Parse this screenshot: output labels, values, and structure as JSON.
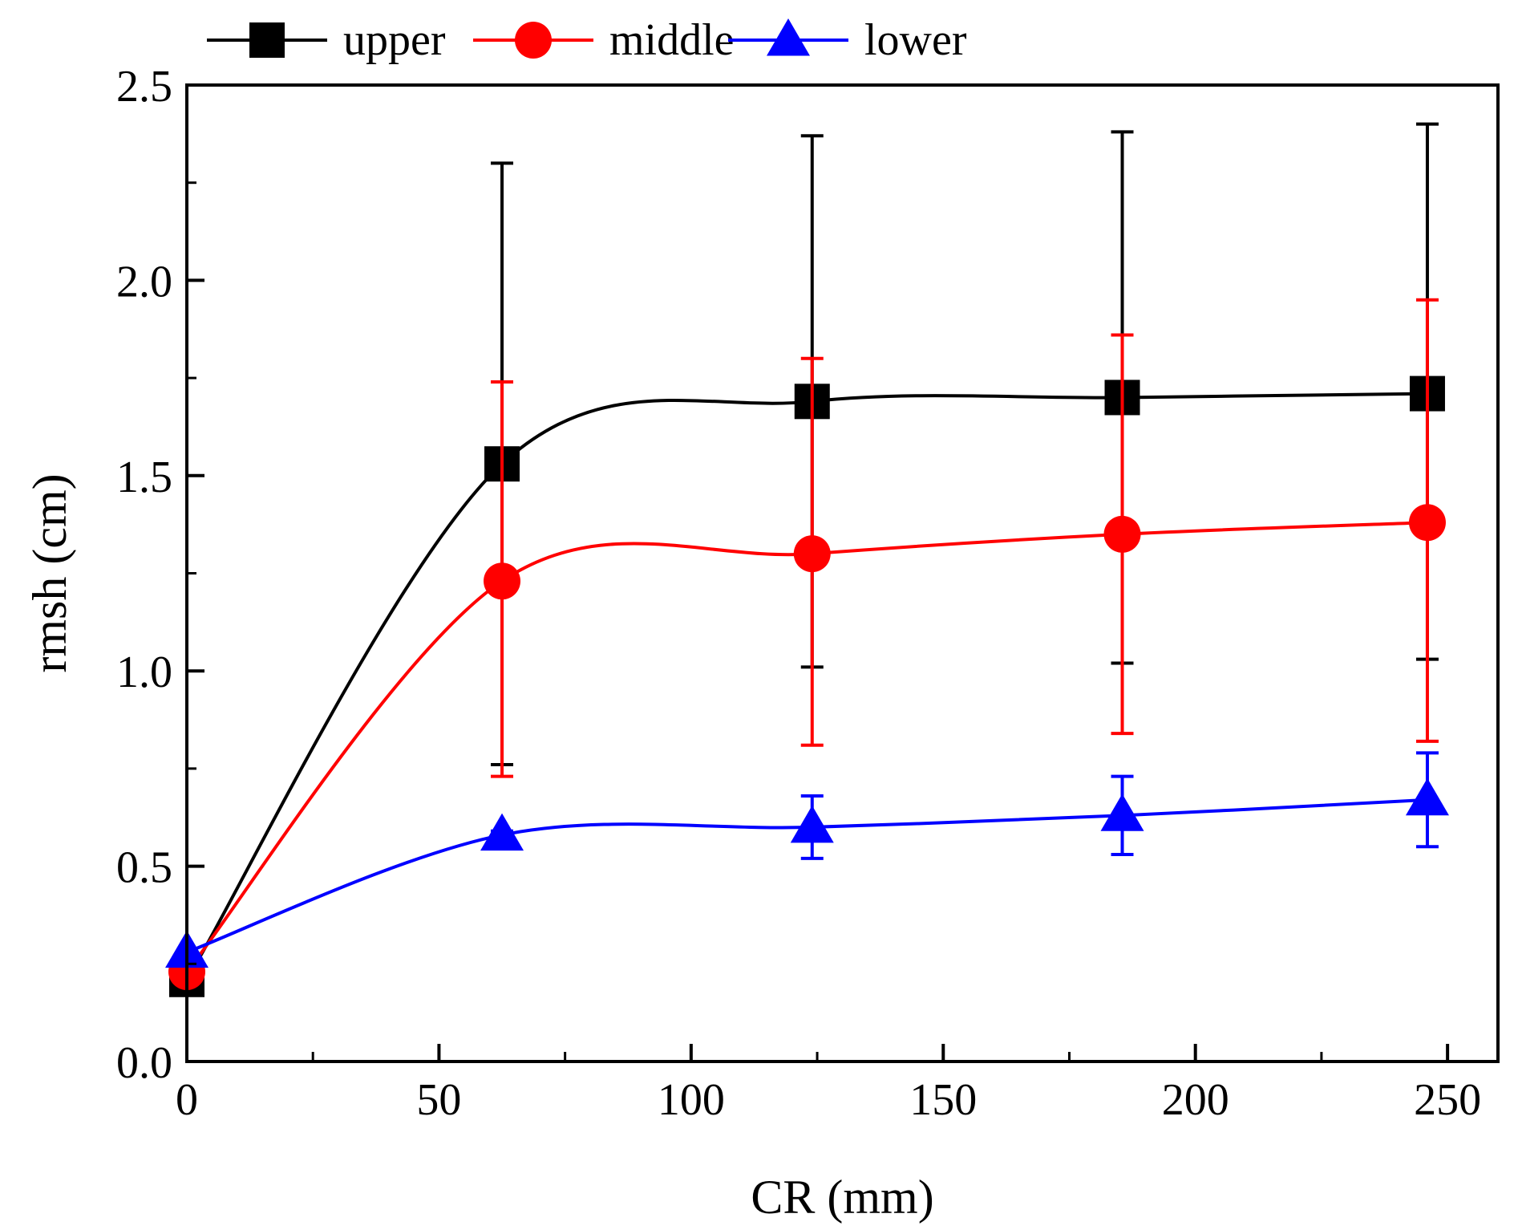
{
  "chart_data": {
    "type": "line",
    "xlabel": "CR (mm)",
    "ylabel": "rmsh (cm)",
    "xlim": [
      0,
      260
    ],
    "ylim": [
      0.0,
      2.5
    ],
    "x_ticks": [
      0,
      50,
      100,
      150,
      200,
      250
    ],
    "x_tick_labels": [
      "0",
      "50",
      "100",
      "150",
      "200",
      "250"
    ],
    "y_ticks": [
      0.0,
      0.5,
      1.0,
      1.5,
      2.0,
      2.5
    ],
    "y_tick_labels": [
      "0.0",
      "0.5",
      "1.0",
      "1.5",
      "2.0",
      "2.5"
    ],
    "grid": false,
    "legend_position": "top",
    "series": [
      {
        "name": "upper",
        "color": "#000000",
        "marker": "square",
        "x": [
          0,
          62.5,
          124,
          185.5,
          246
        ],
        "y": [
          0.21,
          1.53,
          1.69,
          1.7,
          1.71
        ],
        "err_low": [
          null,
          0.76,
          1.01,
          1.02,
          1.03
        ],
        "err_high": [
          null,
          2.3,
          2.37,
          2.38,
          2.4
        ]
      },
      {
        "name": "middle",
        "color": "#ff0000",
        "marker": "circle",
        "x": [
          0,
          62.5,
          124,
          185.5,
          246
        ],
        "y": [
          0.23,
          1.23,
          1.3,
          1.35,
          1.38
        ],
        "err_low": [
          null,
          0.73,
          0.81,
          0.84,
          0.82
        ],
        "err_high": [
          null,
          1.74,
          1.8,
          1.86,
          1.95
        ]
      },
      {
        "name": "lower",
        "color": "#0000ff",
        "marker": "triangle",
        "x": [
          0,
          62.5,
          124,
          185.5,
          246
        ],
        "y": [
          0.28,
          0.58,
          0.6,
          0.63,
          0.67
        ],
        "err_low": [
          null,
          0.56,
          0.52,
          0.53,
          0.55
        ],
        "err_high": [
          null,
          0.59,
          0.68,
          0.73,
          0.79
        ]
      }
    ]
  }
}
